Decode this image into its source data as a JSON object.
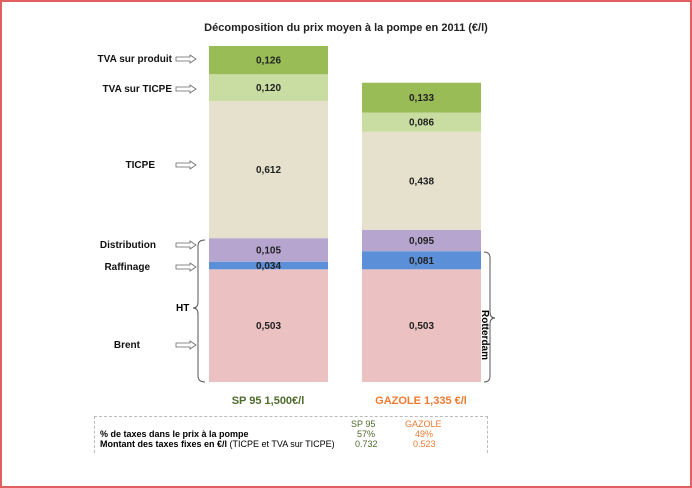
{
  "chart_data": {
    "type": "stacked-bar",
    "title": "Décomposition du prix moyen à la pompe en 2011 (€/l)",
    "categories": [
      "SP 95 1,500€/l",
      "GAZOLE 1,335 €/l"
    ],
    "category_colors": [
      "#4d6b2a",
      "#f07a30"
    ],
    "series": [
      {
        "name": "Brent",
        "values": [
          0.503,
          0.503
        ],
        "labels": [
          "0,503",
          "0,503"
        ],
        "color": "#ecc1c1"
      },
      {
        "name": "Raffinage",
        "values": [
          0.034,
          0.081
        ],
        "labels": [
          "0,034",
          "0,081"
        ],
        "color": "#5b8fd8"
      },
      {
        "name": "Distribution",
        "values": [
          0.105,
          0.095
        ],
        "labels": [
          "0,105",
          "0,095"
        ],
        "color": "#b6a6cf"
      },
      {
        "name": "TICPE",
        "values": [
          0.612,
          0.438
        ],
        "labels": [
          "0,612",
          "0,438"
        ],
        "color": "#e6e1cd"
      },
      {
        "name": "TVA sur TICPE",
        "values": [
          0.12,
          0.086
        ],
        "labels": [
          "0,120",
          "0,086"
        ],
        "color": "#c9dda2"
      },
      {
        "name": "TVA sur produit",
        "values": [
          0.126,
          0.133
        ],
        "labels": [
          "0,126",
          "0,133"
        ],
        "color": "#99bc57"
      }
    ],
    "annotations": {
      "ht": "HT",
      "rotterdam": "Rotterdam"
    },
    "ylim": [
      0,
      1.5
    ]
  },
  "table": {
    "headers": [
      "SP 95",
      "GAZOLE"
    ],
    "rows": [
      {
        "label": "% de taxes dans le prix à la pompe",
        "label_suffix": "",
        "values": [
          "57%",
          "49%"
        ]
      },
      {
        "label": "Montant des taxes fixes en €/l",
        "label_suffix": " (TICPE et TVA sur TICPE)",
        "values": [
          "0.732",
          "0.523"
        ]
      }
    ]
  }
}
